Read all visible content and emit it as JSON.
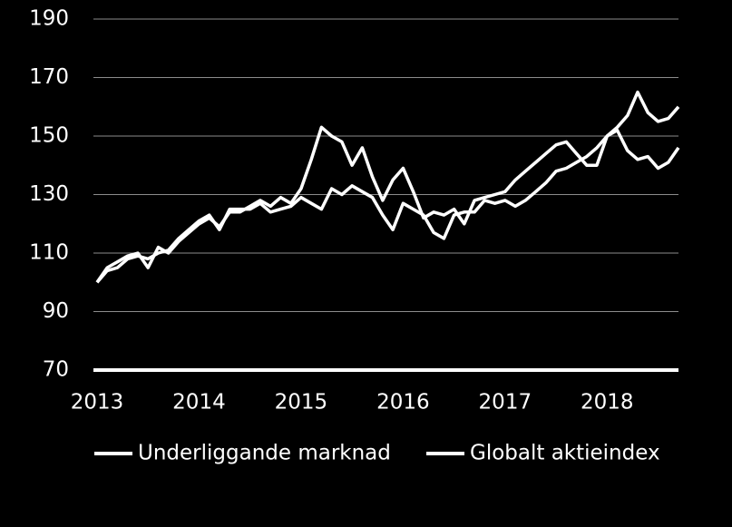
{
  "chart_data": {
    "type": "line",
    "x": [
      2013.0,
      2013.1,
      2013.2,
      2013.3,
      2013.4,
      2013.5,
      2013.6,
      2013.7,
      2013.8,
      2013.9,
      2014.0,
      2014.1,
      2014.2,
      2014.3,
      2014.4,
      2014.5,
      2014.6,
      2014.7,
      2014.8,
      2014.9,
      2015.0,
      2015.1,
      2015.2,
      2015.3,
      2015.4,
      2015.5,
      2015.6,
      2015.7,
      2015.8,
      2015.9,
      2016.0,
      2016.1,
      2016.2,
      2016.3,
      2016.4,
      2016.5,
      2016.6,
      2016.7,
      2016.8,
      2016.9,
      2017.0,
      2017.1,
      2017.2,
      2017.3,
      2017.4,
      2017.5,
      2017.6,
      2017.7,
      2017.8,
      2017.9,
      2018.0,
      2018.1,
      2018.2,
      2018.3,
      2018.4,
      2018.5,
      2018.6,
      2018.7
    ],
    "series": [
      {
        "name": "Underliggande marknad",
        "color": "#ffffff",
        "values": [
          100,
          105,
          107,
          109,
          110,
          105,
          112,
          110,
          114,
          117,
          120,
          122,
          119,
          124,
          124,
          126,
          128,
          126,
          129,
          127,
          132,
          142,
          153,
          150,
          148,
          140,
          146,
          136,
          128,
          135,
          139,
          131,
          122,
          124,
          123,
          125,
          120,
          128,
          129,
          130,
          131,
          135,
          138,
          141,
          144,
          147,
          148,
          144,
          140,
          140,
          150,
          153,
          157,
          165,
          158,
          155,
          156,
          160
        ]
      },
      {
        "name": "Globalt aktieindex",
        "color": "#ffffff",
        "values": [
          100,
          104,
          105,
          108,
          109,
          108,
          110,
          111,
          115,
          118,
          121,
          123,
          118,
          125,
          125,
          125,
          127,
          124,
          125,
          126,
          129,
          127,
          125,
          132,
          130,
          133,
          131,
          129,
          123,
          118,
          127,
          125,
          123,
          117,
          115,
          123,
          124,
          124,
          128,
          127,
          128,
          126,
          128,
          131,
          134,
          138,
          139,
          141,
          143,
          146,
          150,
          152,
          145,
          142,
          143,
          139,
          141,
          146
        ]
      }
    ],
    "xlim": [
      2013,
      2018.7
    ],
    "xticks": [
      2013,
      2014,
      2015,
      2016,
      2017,
      2018
    ],
    "ylim": [
      70,
      190
    ],
    "yticks": [
      70,
      90,
      110,
      130,
      150,
      170,
      190
    ],
    "grid": true,
    "legend": "bottom"
  }
}
